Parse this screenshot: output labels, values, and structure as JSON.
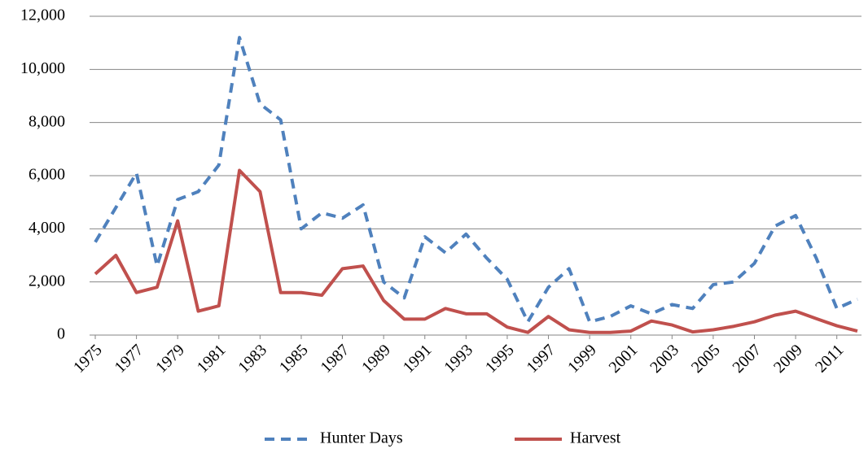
{
  "chart_data": {
    "type": "line",
    "x": [
      1975,
      1976,
      1977,
      1978,
      1979,
      1980,
      1981,
      1982,
      1983,
      1984,
      1985,
      1986,
      1987,
      1988,
      1989,
      1990,
      1991,
      1992,
      1993,
      1994,
      1995,
      1996,
      1997,
      1998,
      1999,
      2000,
      2001,
      2002,
      2003,
      2004,
      2005,
      2006,
      2007,
      2008,
      2009,
      2010,
      2011,
      2012
    ],
    "series": [
      {
        "name": "Hunter Days",
        "color": "#4f81bd",
        "line_style": "dashed",
        "values": [
          3500,
          4800,
          6100,
          2600,
          5100,
          5400,
          6400,
          11200,
          8700,
          8100,
          4000,
          4600,
          4400,
          4900,
          2000,
          1400,
          3700,
          3100,
          3800,
          2900,
          2100,
          500,
          1800,
          2500,
          500,
          700,
          1100,
          800,
          1150,
          1000,
          1900,
          2000,
          2700,
          4100,
          4500,
          2900,
          1000,
          1350
        ]
      },
      {
        "name": "Harvest",
        "color": "#c0504d",
        "line_style": "solid",
        "values": [
          2300,
          3000,
          1600,
          1800,
          4300,
          900,
          1100,
          6200,
          5400,
          1600,
          1600,
          1500,
          2500,
          2600,
          1300,
          600,
          600,
          1000,
          800,
          800,
          300,
          100,
          700,
          200,
          100,
          100,
          150,
          530,
          380,
          120,
          200,
          330,
          500,
          750,
          900,
          620,
          350,
          150
        ]
      }
    ],
    "xlim": [
      1975,
      2012
    ],
    "xticks": [
      1975,
      1977,
      1979,
      1981,
      1983,
      1985,
      1987,
      1989,
      1991,
      1993,
      1995,
      1997,
      1999,
      2001,
      2003,
      2005,
      2007,
      2009,
      2011
    ],
    "ylim": [
      0,
      12000
    ],
    "yticks": [
      0,
      {
        "value": 2000,
        "label": "2,000"
      },
      {
        "value": 4000,
        "label": "4,000"
      },
      {
        "value": 6000,
        "label": "6,000"
      },
      {
        "value": 8000,
        "label": "8,000"
      },
      {
        "value": 10000,
        "label": "10,000"
      },
      {
        "value": 12000,
        "label": "12,000"
      }
    ],
    "grid": true,
    "legend": "bottom"
  }
}
